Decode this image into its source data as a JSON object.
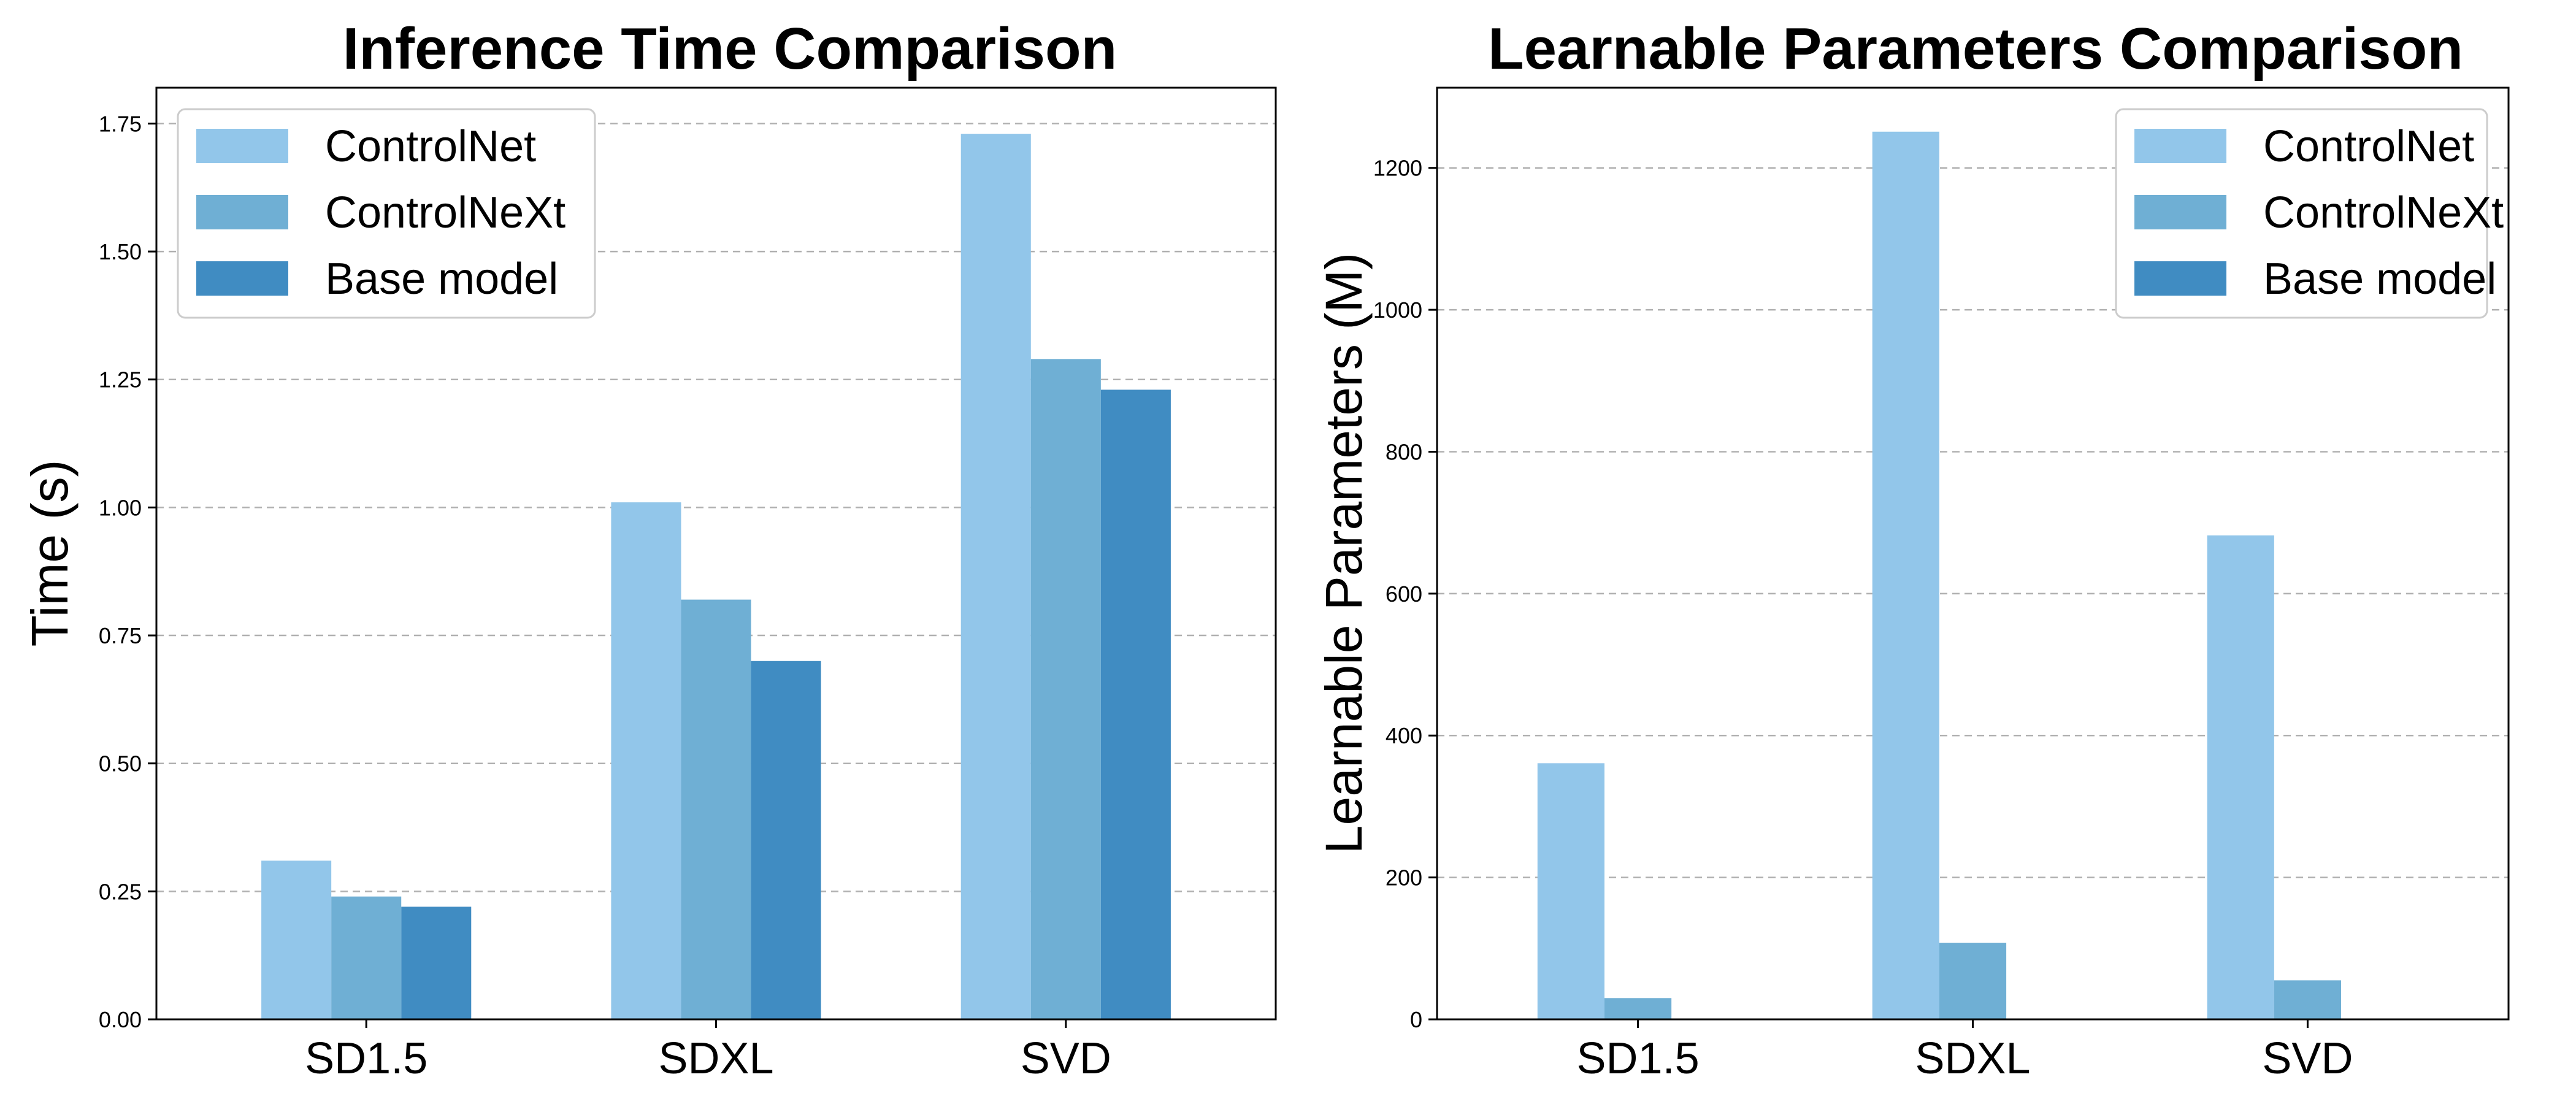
{
  "series_colors": [
    "#92c6ea",
    "#6fafd4",
    "#408cc2"
  ],
  "chart_data": [
    {
      "type": "bar",
      "title": "Inference Time Comparison",
      "xlabel": "",
      "ylabel": "Time (s)",
      "categories": [
        "SD1.5",
        "SDXL",
        "SVD"
      ],
      "series": [
        {
          "name": "ControlNet",
          "values": [
            0.31,
            1.01,
            1.73
          ]
        },
        {
          "name": "ControlNeXt",
          "values": [
            0.24,
            0.82,
            1.29
          ]
        },
        {
          "name": "Base model",
          "values": [
            0.22,
            0.7,
            1.23
          ]
        }
      ],
      "ylim": [
        0,
        1.82
      ],
      "yticks": [
        0,
        0.25,
        0.5,
        0.75,
        1.0,
        1.25,
        1.5,
        1.75
      ],
      "ytick_labels": [
        "0.00",
        "0.25",
        "0.50",
        "0.75",
        "1.00",
        "1.25",
        "1.50",
        "1.75"
      ],
      "grid": true,
      "legend_position": "top-left"
    },
    {
      "type": "bar",
      "title": "Learnable Parameters Comparison",
      "xlabel": "",
      "ylabel": "Learnable Parameters (M)",
      "categories": [
        "SD1.5",
        "SDXL",
        "SVD"
      ],
      "series": [
        {
          "name": "ControlNet",
          "values": [
            361,
            1251,
            682
          ]
        },
        {
          "name": "ControlNeXt",
          "values": [
            30,
            108,
            55
          ]
        },
        {
          "name": "Base model",
          "values": [
            0,
            0,
            0
          ]
        }
      ],
      "ylim": [
        0,
        1313
      ],
      "yticks": [
        0,
        200,
        400,
        600,
        800,
        1000,
        1200
      ],
      "ytick_labels": [
        "0",
        "200",
        "400",
        "600",
        "800",
        "1000",
        "1200"
      ],
      "grid": true,
      "legend_position": "top-right"
    }
  ]
}
